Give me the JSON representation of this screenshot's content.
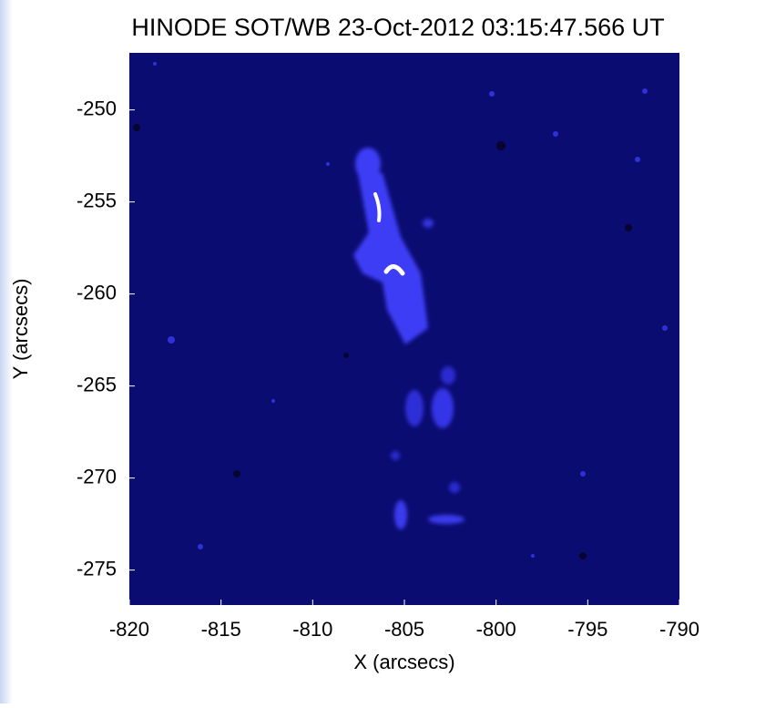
{
  "chart_data": {
    "type": "image",
    "title": "HINODE SOT/WB 23-Oct-2012 03:15:47.566 UT",
    "xlabel": "X (arcsecs)",
    "ylabel": "Y (arcsecs)",
    "xlim": [
      -820,
      -790
    ],
    "ylim": [
      -276.9,
      -246.9
    ],
    "xticks": [
      -820,
      -815,
      -810,
      -805,
      -800,
      -795,
      -790
    ],
    "yticks": [
      -250,
      -255,
      -260,
      -265,
      -270,
      -275
    ]
  }
}
